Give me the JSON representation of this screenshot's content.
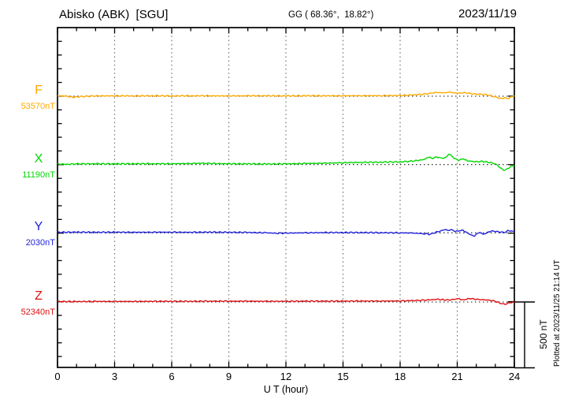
{
  "header": {
    "station_title": "Abisko (ABK)  [SGU]",
    "coords": "GG ( 68.36°,  18.82°)",
    "date": "2023/11/19"
  },
  "axis": {
    "x_label": "U T (hour)",
    "x_tick_labels": [
      "0",
      "3",
      "6",
      "9",
      "12",
      "15",
      "18",
      "21",
      "24"
    ]
  },
  "scale_bar_label": "500 nT",
  "plotted_note": "Plotted at 2023/11/25 21:14 UT",
  "chart_data": {
    "type": "line",
    "title": "Abisko (ABK) [SGU] magnetogram 2023/11/19",
    "x_label": "U T (hour)",
    "x_range_hours": [
      0,
      24
    ],
    "x_major_tick_hours": 3,
    "x_minor_tick_hours": 1,
    "grid": "vertical dotted lines every 3 hours; dotted horizontal baseline per component",
    "scale_bar_nT": 500,
    "y_tick_step_nT": 100,
    "baseline_separation_nT": 500,
    "series": [
      {
        "component": "F",
        "base_label": "53570nT",
        "base_value_nT": 53570,
        "color": "#ffaa00",
        "points_hour_dnT": [
          [
            0,
            3
          ],
          [
            0.5,
            0
          ],
          [
            0.8,
            -8
          ],
          [
            1.2,
            -3
          ],
          [
            2,
            2
          ],
          [
            3,
            3
          ],
          [
            4,
            2
          ],
          [
            5,
            3
          ],
          [
            6,
            2
          ],
          [
            7,
            3
          ],
          [
            8,
            3
          ],
          [
            9,
            2
          ],
          [
            10,
            3
          ],
          [
            11,
            3
          ],
          [
            12,
            2
          ],
          [
            13,
            3
          ],
          [
            14,
            3
          ],
          [
            15,
            3
          ],
          [
            16,
            4
          ],
          [
            17,
            4
          ],
          [
            18,
            5
          ],
          [
            18.5,
            8
          ],
          [
            19,
            12
          ],
          [
            19.5,
            20
          ],
          [
            19.9,
            28
          ],
          [
            20.3,
            25
          ],
          [
            20.6,
            30
          ],
          [
            21,
            22
          ],
          [
            21.4,
            26
          ],
          [
            21.8,
            18
          ],
          [
            22.2,
            14
          ],
          [
            22.6,
            10
          ],
          [
            23,
            -6
          ],
          [
            23.3,
            -18
          ],
          [
            23.5,
            -12
          ],
          [
            23.7,
            -16
          ],
          [
            23.85,
            -5
          ],
          [
            24,
            4
          ]
        ]
      },
      {
        "component": "X",
        "base_label": "11190nT",
        "base_value_nT": 11190,
        "color": "#00d800",
        "points_hour_dnT": [
          [
            0,
            4
          ],
          [
            0.5,
            2
          ],
          [
            1,
            5
          ],
          [
            2,
            6
          ],
          [
            3,
            5
          ],
          [
            4,
            6
          ],
          [
            5,
            6
          ],
          [
            6,
            6
          ],
          [
            7,
            8
          ],
          [
            7.5,
            10
          ],
          [
            8,
            8
          ],
          [
            9,
            6
          ],
          [
            10,
            5
          ],
          [
            11,
            4
          ],
          [
            12,
            5
          ],
          [
            13,
            8
          ],
          [
            14,
            10
          ],
          [
            15,
            14
          ],
          [
            16,
            16
          ],
          [
            17,
            18
          ],
          [
            18,
            20
          ],
          [
            18.5,
            24
          ],
          [
            19,
            32
          ],
          [
            19.3,
            40
          ],
          [
            19.5,
            58
          ],
          [
            19.65,
            45
          ],
          [
            19.8,
            52
          ],
          [
            20,
            55
          ],
          [
            20.2,
            48
          ],
          [
            20.4,
            52
          ],
          [
            20.55,
            78
          ],
          [
            20.65,
            70
          ],
          [
            20.75,
            60
          ],
          [
            20.9,
            40
          ],
          [
            21.1,
            32
          ],
          [
            21.3,
            45
          ],
          [
            21.5,
            30
          ],
          [
            21.7,
            24
          ],
          [
            22,
            20
          ],
          [
            22.3,
            24
          ],
          [
            22.6,
            18
          ],
          [
            22.9,
            10
          ],
          [
            23.1,
            -5
          ],
          [
            23.3,
            -30
          ],
          [
            23.5,
            -42
          ],
          [
            23.7,
            -25
          ],
          [
            23.85,
            -12
          ],
          [
            24,
            -8
          ]
        ]
      },
      {
        "component": "Y",
        "base_label": "2030nT",
        "base_value_nT": 2030,
        "color": "#2222dd",
        "points_hour_dnT": [
          [
            0,
            4
          ],
          [
            1,
            5
          ],
          [
            2,
            4
          ],
          [
            3,
            5
          ],
          [
            4,
            4
          ],
          [
            5,
            5
          ],
          [
            6,
            5
          ],
          [
            7,
            4
          ],
          [
            8,
            5
          ],
          [
            9,
            4
          ],
          [
            10,
            3
          ],
          [
            11,
            0
          ],
          [
            11.5,
            -3
          ],
          [
            12,
            -2
          ],
          [
            13,
            0
          ],
          [
            14,
            2
          ],
          [
            15,
            2
          ],
          [
            16,
            2
          ],
          [
            17,
            1
          ],
          [
            18,
            0
          ],
          [
            18.7,
            -2
          ],
          [
            19.2,
            -6
          ],
          [
            19.6,
            -10
          ],
          [
            19.9,
            5
          ],
          [
            20.1,
            14
          ],
          [
            20.35,
            24
          ],
          [
            20.5,
            18
          ],
          [
            20.7,
            22
          ],
          [
            20.9,
            10
          ],
          [
            21.1,
            16
          ],
          [
            21.3,
            20
          ],
          [
            21.5,
            2
          ],
          [
            21.75,
            -18
          ],
          [
            21.9,
            -24
          ],
          [
            22.05,
            -5
          ],
          [
            22.2,
            4
          ],
          [
            22.35,
            -12
          ],
          [
            22.5,
            -3
          ],
          [
            22.7,
            10
          ],
          [
            22.9,
            12
          ],
          [
            23.1,
            8
          ],
          [
            23.3,
            6
          ],
          [
            23.5,
            5
          ],
          [
            23.7,
            18
          ],
          [
            23.85,
            12
          ],
          [
            24,
            10
          ]
        ]
      },
      {
        "component": "Z",
        "base_label": "52340nT",
        "base_value_nT": 52340,
        "color": "#dd1111",
        "points_hour_dnT": [
          [
            0,
            3
          ],
          [
            1,
            3
          ],
          [
            2,
            4
          ],
          [
            3,
            4
          ],
          [
            4,
            4
          ],
          [
            5,
            5
          ],
          [
            6,
            5
          ],
          [
            7,
            5
          ],
          [
            8,
            6
          ],
          [
            9,
            6
          ],
          [
            10,
            6
          ],
          [
            11,
            5
          ],
          [
            12,
            5
          ],
          [
            13,
            6
          ],
          [
            14,
            6
          ],
          [
            15,
            6
          ],
          [
            16,
            7
          ],
          [
            17,
            7
          ],
          [
            18,
            8
          ],
          [
            18.5,
            10
          ],
          [
            19,
            12
          ],
          [
            19.5,
            15
          ],
          [
            20,
            20
          ],
          [
            20.3,
            16
          ],
          [
            20.6,
            14
          ],
          [
            20.9,
            22
          ],
          [
            21.1,
            25
          ],
          [
            21.3,
            15
          ],
          [
            21.5,
            22
          ],
          [
            21.7,
            25
          ],
          [
            22,
            20
          ],
          [
            22.3,
            18
          ],
          [
            22.6,
            14
          ],
          [
            22.9,
            8
          ],
          [
            23.1,
            0
          ],
          [
            23.3,
            -10
          ],
          [
            23.5,
            -16
          ],
          [
            23.7,
            -8
          ],
          [
            23.85,
            -4
          ],
          [
            24,
            0
          ]
        ]
      }
    ]
  }
}
